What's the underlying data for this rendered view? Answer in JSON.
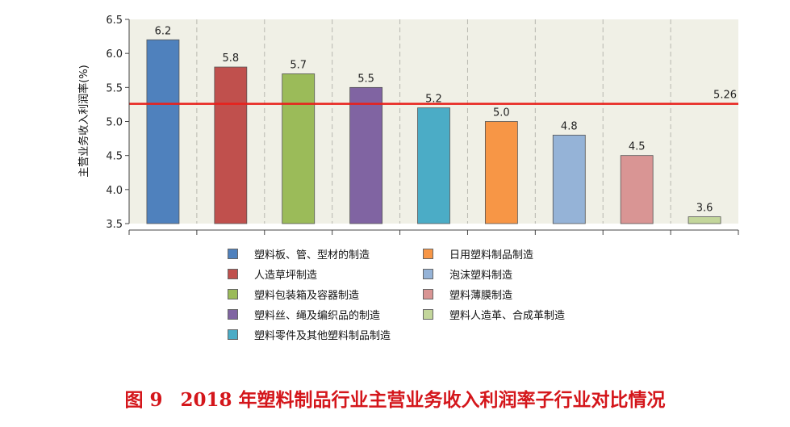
{
  "chart_data": {
    "type": "bar",
    "categories": [
      "塑料板、管、型材的制造",
      "人造草坪制造",
      "塑料包装箱及容器制造",
      "塑料丝、绳及编织品的制造",
      "塑料零件及其他塑料制品制造",
      "日用塑料制品制造",
      "泡沫塑料制造",
      "塑料薄膜制造",
      "塑料人造革、合成革制造"
    ],
    "values": [
      6.2,
      5.8,
      5.7,
      5.5,
      5.2,
      5.0,
      4.8,
      4.5,
      3.6
    ],
    "value_labels": [
      "6.2",
      "5.8",
      "5.7",
      "5.5",
      "5.2",
      "5.0",
      "4.8",
      "4.5",
      "3.6"
    ],
    "colors": [
      "#4f81bd",
      "#c0504d",
      "#9bbb59",
      "#8064a2",
      "#4bacc6",
      "#f79646",
      "#95b3d7",
      "#d99594",
      "#c3d69b"
    ],
    "reference_line": {
      "value": 5.26,
      "label": "5.26",
      "color": "#e8201b"
    },
    "ylabel": "主营业务收入利润率(%)",
    "xlabel": "",
    "ylim": [
      3.5,
      6.5
    ],
    "yticks": [
      "3.5",
      "4.0",
      "4.5",
      "5.0",
      "5.5",
      "6.0",
      "6.5"
    ],
    "grid": "vertical dashed",
    "legend_position": "bottom",
    "background": "#f0f0e6"
  },
  "caption": {
    "figure_number": "图 9",
    "title": "2018 年塑料制品行业主营业务收入利润率子行业对比情况"
  }
}
